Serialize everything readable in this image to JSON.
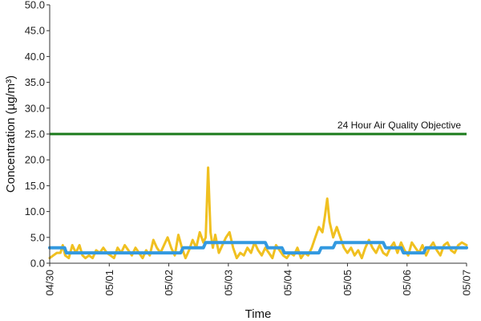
{
  "chart_data": {
    "type": "line",
    "title": "",
    "xlabel": "Time",
    "ylabel": "Concentration (µg/m³)",
    "ylim": [
      0,
      50
    ],
    "y_ticks": [
      "0.0",
      "5.0",
      "10.0",
      "15.0",
      "20.0",
      "25.0",
      "30.0",
      "35.0",
      "40.0",
      "45.0",
      "50.0"
    ],
    "x_ticks": [
      "04/30",
      "05/01",
      "05/02",
      "05/03",
      "05/04",
      "05/05",
      "05/06",
      "05/07"
    ],
    "x_range_days": [
      0,
      7
    ],
    "grid": false,
    "series": [
      {
        "color": "#f0c020",
        "points": [
          [
            0.0,
            1.0
          ],
          [
            0.06,
            1.5
          ],
          [
            0.12,
            2.0
          ],
          [
            0.18,
            2.0
          ],
          [
            0.22,
            3.5
          ],
          [
            0.26,
            1.5
          ],
          [
            0.32,
            1.0
          ],
          [
            0.38,
            3.5
          ],
          [
            0.44,
            2.0
          ],
          [
            0.5,
            3.5
          ],
          [
            0.55,
            1.5
          ],
          [
            0.6,
            1.0
          ],
          [
            0.66,
            1.5
          ],
          [
            0.72,
            1.0
          ],
          [
            0.78,
            2.5
          ],
          [
            0.84,
            2.0
          ],
          [
            0.9,
            3.0
          ],
          [
            0.96,
            2.0
          ],
          [
            1.02,
            1.5
          ],
          [
            1.08,
            1.0
          ],
          [
            1.14,
            3.0
          ],
          [
            1.2,
            2.0
          ],
          [
            1.26,
            3.5
          ],
          [
            1.32,
            2.5
          ],
          [
            1.38,
            1.5
          ],
          [
            1.44,
            3.0
          ],
          [
            1.5,
            2.0
          ],
          [
            1.56,
            1.0
          ],
          [
            1.62,
            2.5
          ],
          [
            1.68,
            1.5
          ],
          [
            1.74,
            4.5
          ],
          [
            1.8,
            3.0
          ],
          [
            1.86,
            2.0
          ],
          [
            1.92,
            3.5
          ],
          [
            1.98,
            5.0
          ],
          [
            2.04,
            3.0
          ],
          [
            2.1,
            1.5
          ],
          [
            2.16,
            5.5
          ],
          [
            2.22,
            3.0
          ],
          [
            2.28,
            1.0
          ],
          [
            2.34,
            2.5
          ],
          [
            2.4,
            4.5
          ],
          [
            2.46,
            3.0
          ],
          [
            2.52,
            6.0
          ],
          [
            2.58,
            4.0
          ],
          [
            2.62,
            5.0
          ],
          [
            2.66,
            18.5
          ],
          [
            2.7,
            6.0
          ],
          [
            2.74,
            3.0
          ],
          [
            2.78,
            5.5
          ],
          [
            2.84,
            2.0
          ],
          [
            2.9,
            3.5
          ],
          [
            2.96,
            5.0
          ],
          [
            3.02,
            6.0
          ],
          [
            3.08,
            3.0
          ],
          [
            3.14,
            1.0
          ],
          [
            3.2,
            2.0
          ],
          [
            3.26,
            1.5
          ],
          [
            3.32,
            3.0
          ],
          [
            3.38,
            2.0
          ],
          [
            3.44,
            4.0
          ],
          [
            3.5,
            2.5
          ],
          [
            3.56,
            1.5
          ],
          [
            3.62,
            3.0
          ],
          [
            3.68,
            2.0
          ],
          [
            3.74,
            1.0
          ],
          [
            3.8,
            3.5
          ],
          [
            3.86,
            2.5
          ],
          [
            3.92,
            1.5
          ],
          [
            3.98,
            1.0
          ],
          [
            4.04,
            2.0
          ],
          [
            4.1,
            1.5
          ],
          [
            4.16,
            3.0
          ],
          [
            4.22,
            1.0
          ],
          [
            4.28,
            2.0
          ],
          [
            4.34,
            1.5
          ],
          [
            4.4,
            3.0
          ],
          [
            4.46,
            5.0
          ],
          [
            4.52,
            7.0
          ],
          [
            4.58,
            6.0
          ],
          [
            4.62,
            9.0
          ],
          [
            4.66,
            12.5
          ],
          [
            4.7,
            8.0
          ],
          [
            4.76,
            5.0
          ],
          [
            4.82,
            7.0
          ],
          [
            4.88,
            5.0
          ],
          [
            4.94,
            3.0
          ],
          [
            5.0,
            2.0
          ],
          [
            5.06,
            3.0
          ],
          [
            5.12,
            1.5
          ],
          [
            5.18,
            2.5
          ],
          [
            5.24,
            1.0
          ],
          [
            5.3,
            3.0
          ],
          [
            5.36,
            4.5
          ],
          [
            5.42,
            3.0
          ],
          [
            5.48,
            2.0
          ],
          [
            5.54,
            3.5
          ],
          [
            5.6,
            2.0
          ],
          [
            5.66,
            1.5
          ],
          [
            5.72,
            3.0
          ],
          [
            5.78,
            4.0
          ],
          [
            5.84,
            2.0
          ],
          [
            5.9,
            4.0
          ],
          [
            5.96,
            2.5
          ],
          [
            6.02,
            1.5
          ],
          [
            6.08,
            4.0
          ],
          [
            6.14,
            3.0
          ],
          [
            6.2,
            2.0
          ],
          [
            6.26,
            3.5
          ],
          [
            6.32,
            1.5
          ],
          [
            6.38,
            3.0
          ],
          [
            6.44,
            4.0
          ],
          [
            6.5,
            2.5
          ],
          [
            6.56,
            1.5
          ],
          [
            6.62,
            3.5
          ],
          [
            6.68,
            4.0
          ],
          [
            6.74,
            2.5
          ],
          [
            6.8,
            2.0
          ],
          [
            6.86,
            3.5
          ],
          [
            6.92,
            4.0
          ],
          [
            7.0,
            3.5
          ]
        ]
      },
      {
        "color": "#3399e0",
        "points": [
          [
            0.0,
            3.0
          ],
          [
            0.25,
            3.0
          ],
          [
            0.28,
            2.0
          ],
          [
            2.2,
            2.0
          ],
          [
            2.24,
            3.0
          ],
          [
            2.58,
            3.0
          ],
          [
            2.62,
            4.0
          ],
          [
            3.62,
            4.0
          ],
          [
            3.66,
            3.0
          ],
          [
            3.9,
            3.0
          ],
          [
            3.94,
            2.0
          ],
          [
            4.52,
            2.0
          ],
          [
            4.56,
            3.0
          ],
          [
            4.76,
            3.0
          ],
          [
            4.8,
            4.0
          ],
          [
            5.6,
            4.0
          ],
          [
            5.64,
            3.0
          ],
          [
            5.9,
            3.0
          ],
          [
            5.94,
            2.0
          ],
          [
            6.28,
            2.0
          ],
          [
            6.32,
            3.0
          ],
          [
            7.0,
            3.0
          ]
        ]
      }
    ],
    "reference_lines": [
      {
        "label": "24 Hour Air Quality Objective",
        "y": 25.0,
        "color": "#1a7a1a"
      }
    ]
  }
}
